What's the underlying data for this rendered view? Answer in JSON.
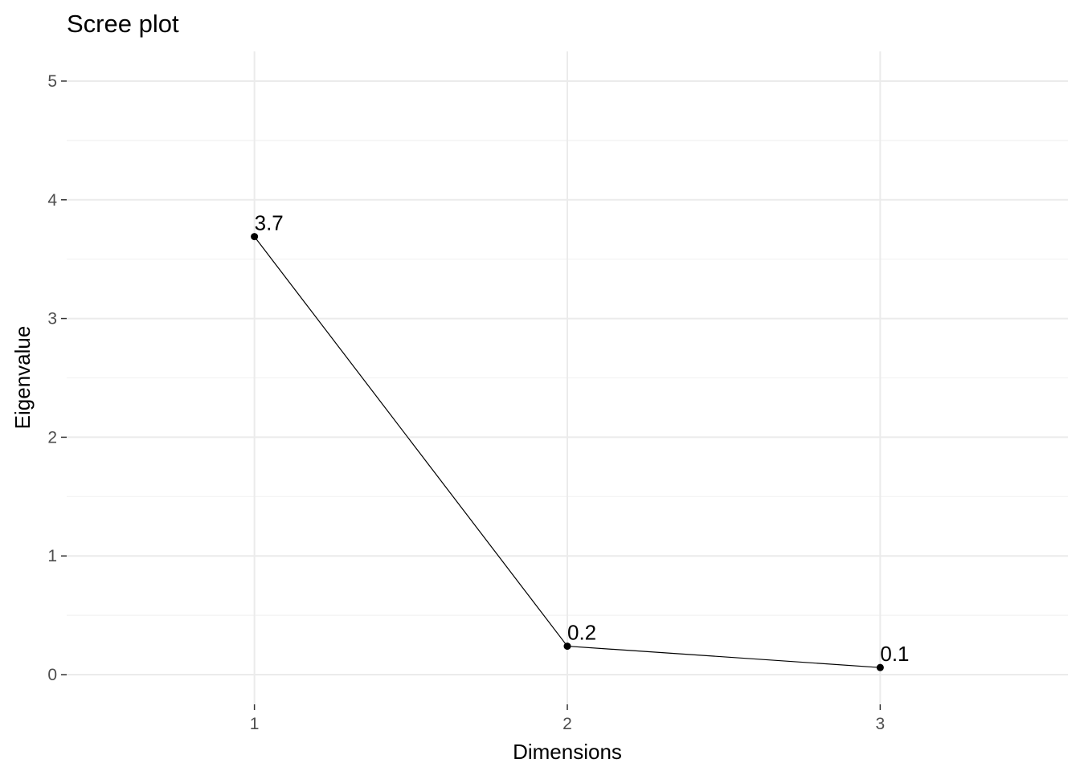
{
  "chart_data": {
    "type": "line",
    "title": "Scree plot",
    "xlabel": "Dimensions",
    "ylabel": "Eigenvalue",
    "categories": [
      "1",
      "2",
      "3"
    ],
    "x": [
      1,
      2,
      3
    ],
    "values": [
      3.69,
      0.24,
      0.06
    ],
    "data_labels": [
      "3.7",
      "0.2",
      "0.1"
    ],
    "xlim": [
      0.4,
      3.6
    ],
    "ylim": [
      -0.25,
      5.25
    ],
    "yticks": [
      0,
      1,
      2,
      3,
      4,
      5
    ],
    "ytick_labels": [
      "0",
      "1",
      "2",
      "3",
      "4",
      "5"
    ],
    "grid": true,
    "legend": "none",
    "colors": {
      "line": "#000000",
      "point": "#000000",
      "grid_major": "#ebebeb",
      "grid_minor": "#f2f2f2",
      "tick_text": "#4d4d4d",
      "tick_mark": "#333333"
    }
  }
}
